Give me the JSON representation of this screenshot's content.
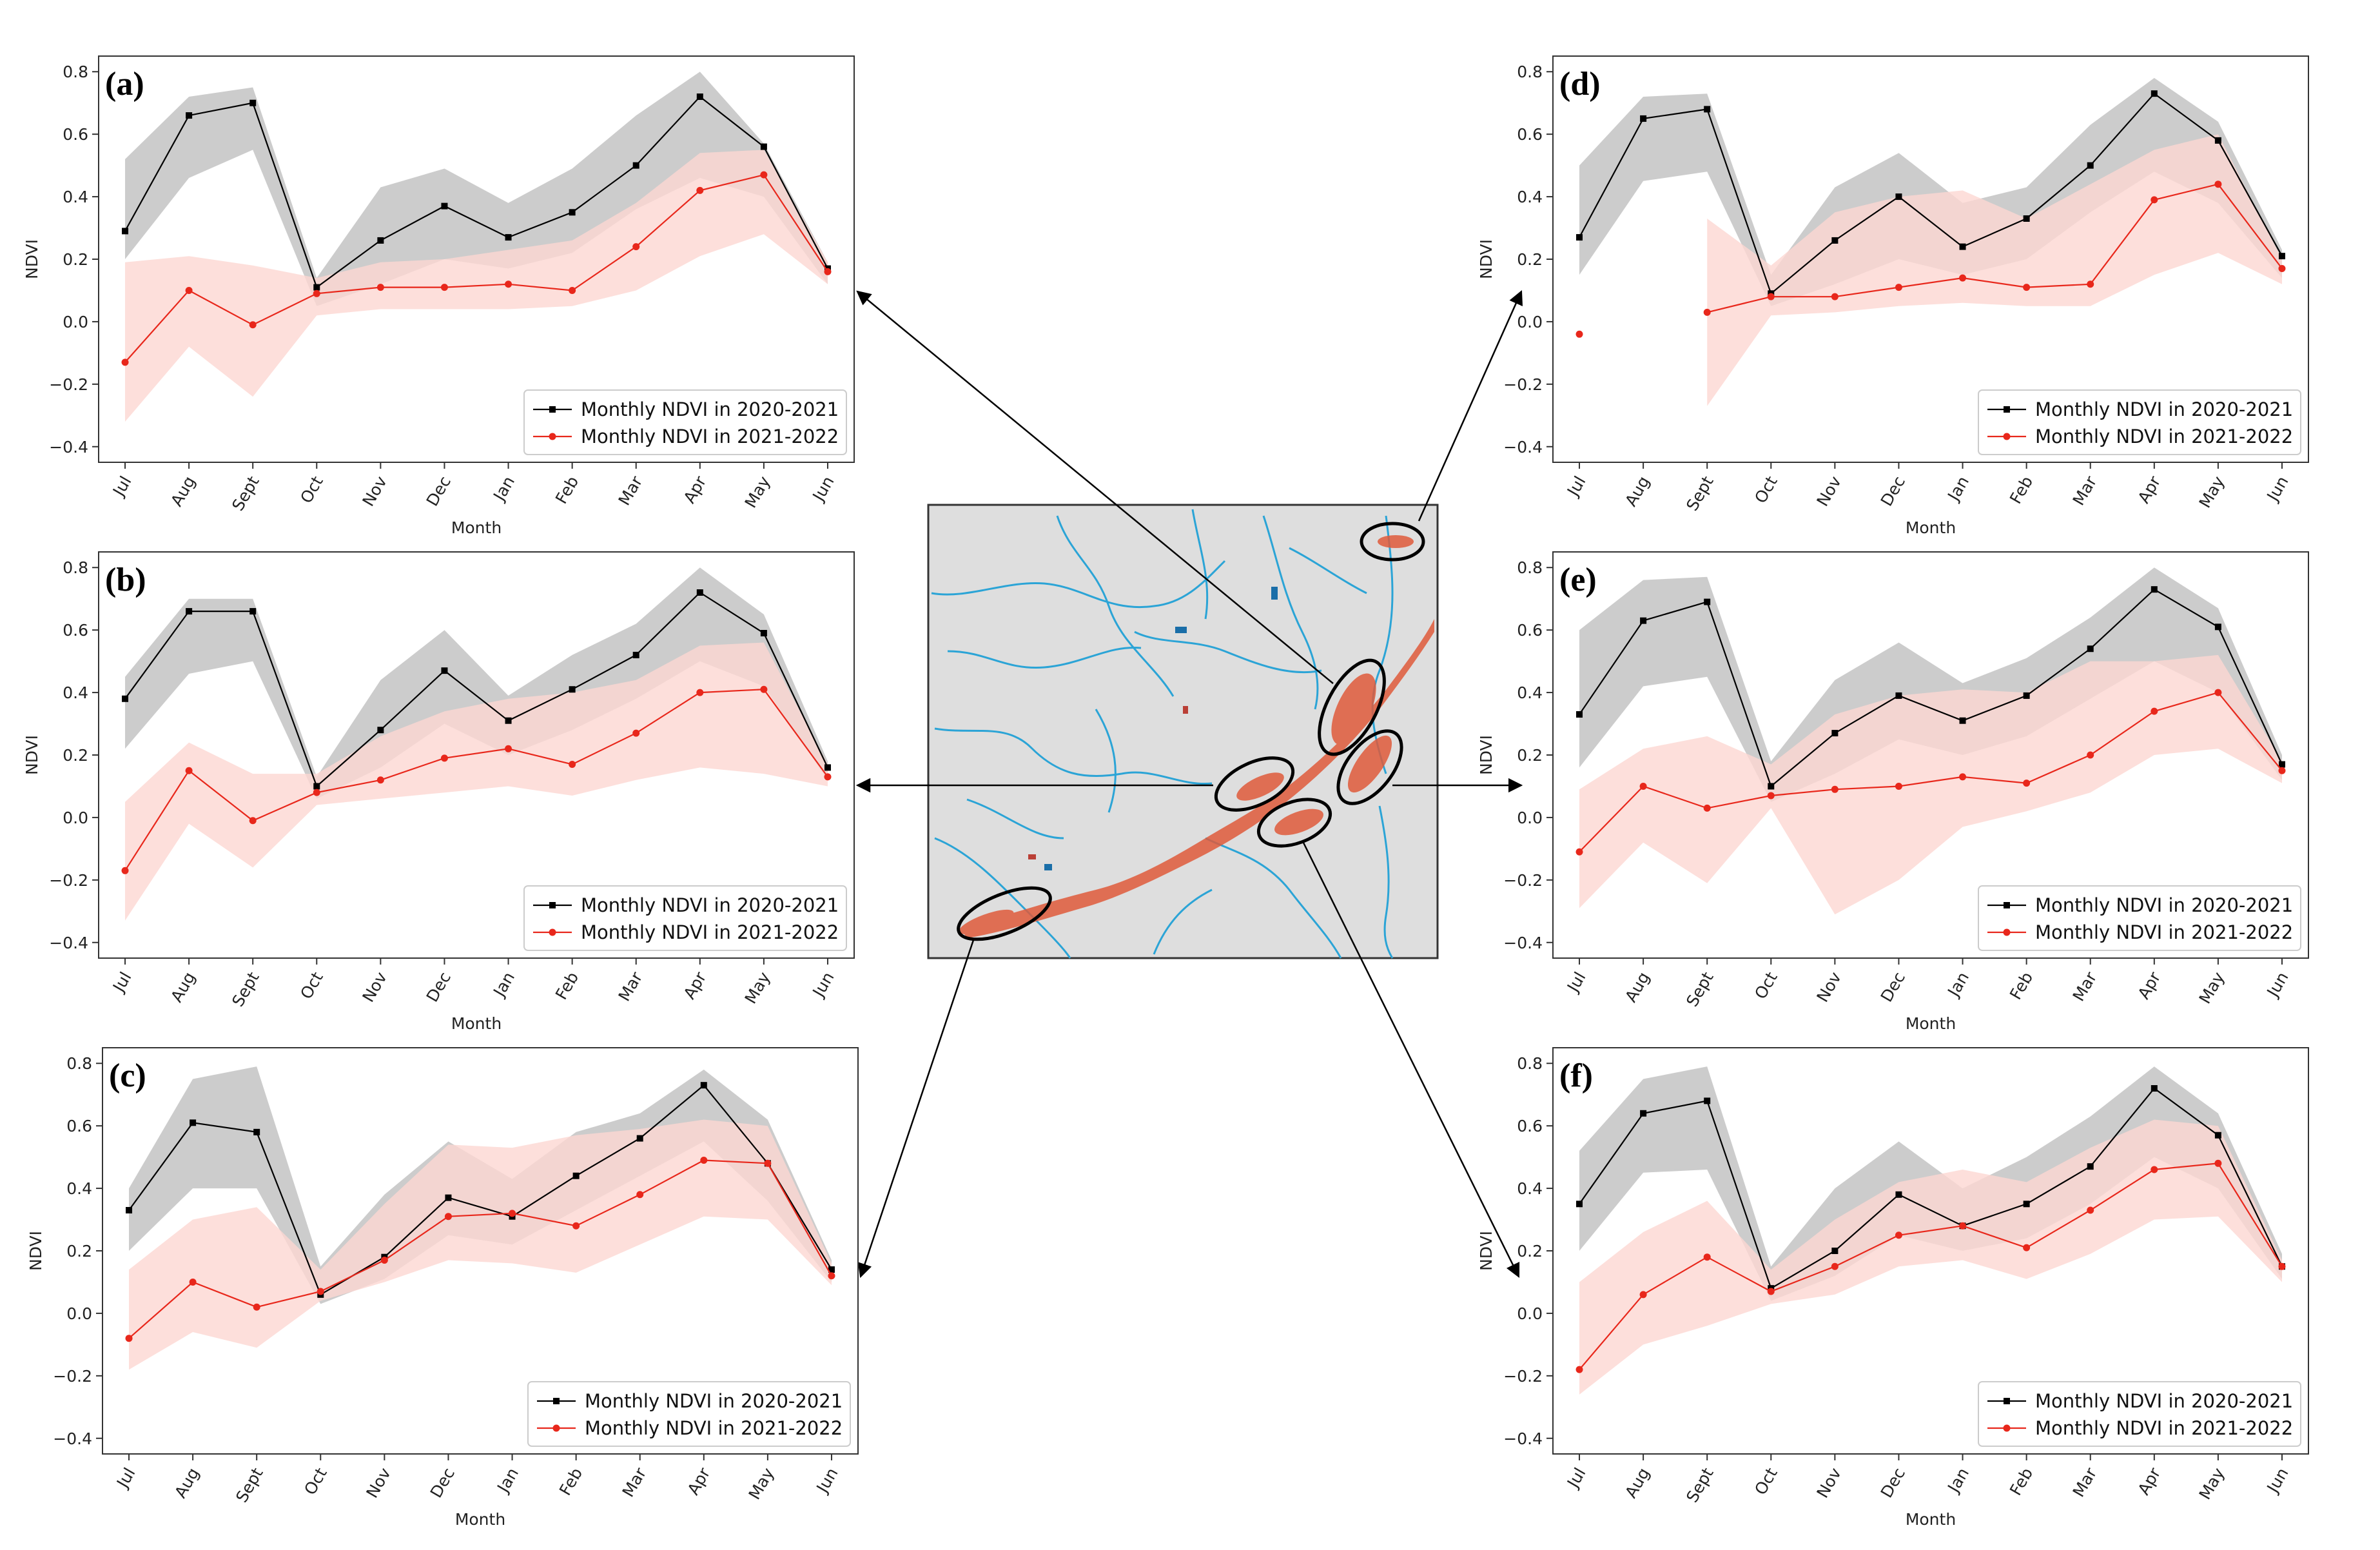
{
  "figure": {
    "colors": {
      "series_2020": "#000000",
      "series_2021": "#e8271b",
      "band_2020": "#c9c9c9",
      "band_2021": "#fcd7d2"
    },
    "map": {
      "description_icon": "study-area-map",
      "highlight_count": 6
    }
  },
  "chart_data": [
    {
      "type": "line",
      "panel_label": "(a)",
      "categories": [
        "Jul",
        "Aug",
        "Sept",
        "Oct",
        "Nov",
        "Dec",
        "Jan",
        "Feb",
        "Mar",
        "Apr",
        "May",
        "Jun"
      ],
      "xlabel": "Month",
      "ylabel": "NDVI",
      "ylim": [
        -0.45,
        0.85
      ],
      "yticks": [
        -0.4,
        -0.2,
        0.0,
        0.2,
        0.4,
        0.6,
        0.8
      ],
      "ytick_labels": [
        "−0.4",
        "−0.2",
        "0.0",
        "0.2",
        "0.4",
        "0.6",
        "0.8"
      ],
      "legend_position": "lower-right",
      "series": [
        {
          "name": "Monthly NDVI in 2020-2021",
          "color": "#000000",
          "values": [
            0.29,
            0.66,
            0.7,
            0.11,
            0.26,
            0.37,
            0.27,
            0.35,
            0.5,
            0.72,
            0.56,
            0.17
          ],
          "band_low": [
            0.2,
            0.46,
            0.55,
            0.05,
            0.12,
            0.2,
            0.17,
            0.22,
            0.36,
            0.46,
            0.4,
            0.12
          ],
          "band_high": [
            0.52,
            0.72,
            0.75,
            0.14,
            0.43,
            0.49,
            0.38,
            0.49,
            0.66,
            0.8,
            0.57,
            0.19
          ]
        },
        {
          "name": "Monthly NDVI in 2021-2022",
          "color": "#e8271b",
          "values": [
            -0.13,
            0.1,
            -0.01,
            0.09,
            0.11,
            0.11,
            0.12,
            0.1,
            0.24,
            0.42,
            0.47,
            0.16
          ],
          "band_low": [
            -0.32,
            -0.08,
            -0.24,
            0.02,
            0.04,
            0.04,
            0.04,
            0.05,
            0.1,
            0.21,
            0.28,
            0.12
          ],
          "band_high": [
            0.19,
            0.21,
            0.18,
            0.14,
            0.19,
            0.2,
            0.23,
            0.26,
            0.38,
            0.54,
            0.55,
            0.19
          ]
        }
      ]
    },
    {
      "type": "line",
      "panel_label": "(b)",
      "categories": [
        "Jul",
        "Aug",
        "Sept",
        "Oct",
        "Nov",
        "Dec",
        "Jan",
        "Feb",
        "Mar",
        "Apr",
        "May",
        "Jun"
      ],
      "xlabel": "Month",
      "ylabel": "NDVI",
      "ylim": [
        -0.45,
        0.85
      ],
      "yticks": [
        -0.4,
        -0.2,
        0.0,
        0.2,
        0.4,
        0.6,
        0.8
      ],
      "ytick_labels": [
        "−0.4",
        "−0.2",
        "0.0",
        "0.2",
        "0.4",
        "0.6",
        "0.8"
      ],
      "legend_position": "lower-right",
      "series": [
        {
          "name": "Monthly NDVI in 2020-2021",
          "color": "#000000",
          "values": [
            0.38,
            0.66,
            0.66,
            0.1,
            0.28,
            0.47,
            0.31,
            0.41,
            0.52,
            0.72,
            0.59,
            0.16
          ],
          "band_low": [
            0.22,
            0.46,
            0.5,
            0.06,
            0.16,
            0.3,
            0.2,
            0.28,
            0.38,
            0.5,
            0.42,
            0.12
          ],
          "band_high": [
            0.45,
            0.7,
            0.7,
            0.13,
            0.44,
            0.6,
            0.39,
            0.52,
            0.62,
            0.8,
            0.65,
            0.18
          ]
        },
        {
          "name": "Monthly NDVI in 2021-2022",
          "color": "#e8271b",
          "values": [
            -0.17,
            0.15,
            -0.01,
            0.08,
            0.12,
            0.19,
            0.22,
            0.17,
            0.27,
            0.4,
            0.41,
            0.13
          ],
          "band_low": [
            -0.33,
            -0.02,
            -0.16,
            0.04,
            0.06,
            0.08,
            0.1,
            0.07,
            0.12,
            0.16,
            0.14,
            0.1
          ],
          "band_high": [
            0.05,
            0.24,
            0.14,
            0.14,
            0.26,
            0.34,
            0.38,
            0.4,
            0.44,
            0.55,
            0.56,
            0.17
          ]
        }
      ]
    },
    {
      "type": "line",
      "panel_label": "(c)",
      "categories": [
        "Jul",
        "Aug",
        "Sept",
        "Oct",
        "Nov",
        "Dec",
        "Jan",
        "Feb",
        "Mar",
        "Apr",
        "May",
        "Jun"
      ],
      "xlabel": "Month",
      "ylabel": "NDVI",
      "ylim": [
        -0.45,
        0.85
      ],
      "yticks": [
        -0.4,
        -0.2,
        0.0,
        0.2,
        0.4,
        0.6,
        0.8
      ],
      "ytick_labels": [
        "−0.4",
        "−0.2",
        "0.0",
        "0.2",
        "0.4",
        "0.6",
        "0.8"
      ],
      "legend_position": "lower-right",
      "series": [
        {
          "name": "Monthly NDVI in 2020-2021",
          "color": "#000000",
          "values": [
            0.33,
            0.61,
            0.58,
            0.06,
            0.18,
            0.37,
            0.31,
            0.44,
            0.56,
            0.73,
            0.48,
            0.14
          ],
          "band_low": [
            0.2,
            0.4,
            0.4,
            0.03,
            0.11,
            0.25,
            0.22,
            0.33,
            0.44,
            0.55,
            0.36,
            0.1
          ],
          "band_high": [
            0.4,
            0.75,
            0.79,
            0.15,
            0.38,
            0.55,
            0.43,
            0.58,
            0.64,
            0.78,
            0.62,
            0.17
          ]
        },
        {
          "name": "Monthly NDVI in 2021-2022",
          "color": "#e8271b",
          "values": [
            -0.08,
            0.1,
            0.02,
            0.07,
            0.17,
            0.31,
            0.32,
            0.28,
            0.38,
            0.49,
            0.48,
            0.12
          ],
          "band_low": [
            -0.18,
            -0.06,
            -0.11,
            0.04,
            0.1,
            0.17,
            0.16,
            0.13,
            0.22,
            0.31,
            0.3,
            0.09
          ],
          "band_high": [
            0.14,
            0.3,
            0.34,
            0.14,
            0.35,
            0.54,
            0.53,
            0.57,
            0.59,
            0.62,
            0.6,
            0.16
          ]
        }
      ]
    },
    {
      "type": "line",
      "panel_label": "(d)",
      "categories": [
        "Jul",
        "Aug",
        "Sept",
        "Oct",
        "Nov",
        "Dec",
        "Jan",
        "Feb",
        "Mar",
        "Apr",
        "May",
        "Jun"
      ],
      "xlabel": "Month",
      "ylabel": "NDVI",
      "ylim": [
        -0.45,
        0.85
      ],
      "yticks": [
        -0.4,
        -0.2,
        0.0,
        0.2,
        0.4,
        0.6,
        0.8
      ],
      "ytick_labels": [
        "−0.4",
        "−0.2",
        "0.0",
        "0.2",
        "0.4",
        "0.6",
        "0.8"
      ],
      "legend_position": "lower-right",
      "series": [
        {
          "name": "Monthly NDVI in 2020-2021",
          "color": "#000000",
          "values": [
            0.27,
            0.65,
            0.68,
            0.09,
            0.26,
            0.4,
            0.24,
            0.33,
            0.5,
            0.73,
            0.58,
            0.21
          ],
          "band_low": [
            0.15,
            0.45,
            0.48,
            0.05,
            0.12,
            0.2,
            0.15,
            0.2,
            0.35,
            0.48,
            0.38,
            0.14
          ],
          "band_high": [
            0.5,
            0.72,
            0.73,
            0.15,
            0.43,
            0.54,
            0.38,
            0.43,
            0.63,
            0.78,
            0.64,
            0.23
          ]
        },
        {
          "name": "Monthly NDVI in 2021-2022",
          "color": "#e8271b",
          "values": [
            -0.04,
            null,
            0.03,
            0.08,
            0.08,
            0.11,
            0.14,
            0.11,
            0.12,
            0.39,
            0.44,
            0.17
          ],
          "band_low": [
            null,
            null,
            -0.27,
            0.02,
            0.03,
            0.05,
            0.06,
            0.05,
            0.05,
            0.15,
            0.22,
            0.12
          ],
          "band_high": [
            null,
            null,
            0.33,
            0.18,
            0.35,
            0.4,
            0.42,
            0.33,
            0.44,
            0.55,
            0.6,
            0.2
          ]
        }
      ]
    },
    {
      "type": "line",
      "panel_label": "(e)",
      "categories": [
        "Jul",
        "Aug",
        "Sept",
        "Oct",
        "Nov",
        "Dec",
        "Jan",
        "Feb",
        "Mar",
        "Apr",
        "May",
        "Jun"
      ],
      "xlabel": "Month",
      "ylabel": "NDVI",
      "ylim": [
        -0.45,
        0.85
      ],
      "yticks": [
        -0.4,
        -0.2,
        0.0,
        0.2,
        0.4,
        0.6,
        0.8
      ],
      "ytick_labels": [
        "−0.4",
        "−0.2",
        "0.0",
        "0.2",
        "0.4",
        "0.6",
        "0.8"
      ],
      "legend_position": "lower-right",
      "series": [
        {
          "name": "Monthly NDVI in 2020-2021",
          "color": "#000000",
          "values": [
            0.33,
            0.63,
            0.69,
            0.1,
            0.27,
            0.39,
            0.31,
            0.39,
            0.54,
            0.73,
            0.61,
            0.17
          ],
          "band_low": [
            0.16,
            0.42,
            0.45,
            0.05,
            0.14,
            0.25,
            0.2,
            0.26,
            0.38,
            0.5,
            0.4,
            0.12
          ],
          "band_high": [
            0.6,
            0.76,
            0.77,
            0.18,
            0.44,
            0.56,
            0.43,
            0.51,
            0.64,
            0.8,
            0.67,
            0.2
          ]
        },
        {
          "name": "Monthly NDVI in 2021-2022",
          "color": "#e8271b",
          "values": [
            -0.11,
            0.1,
            0.03,
            0.07,
            0.09,
            0.1,
            0.13,
            0.11,
            0.2,
            0.34,
            0.4,
            0.15
          ],
          "band_low": [
            -0.29,
            -0.08,
            -0.21,
            0.03,
            -0.31,
            -0.2,
            -0.03,
            0.02,
            0.08,
            0.2,
            0.22,
            0.11
          ],
          "band_high": [
            0.09,
            0.22,
            0.26,
            0.17,
            0.33,
            0.39,
            0.41,
            0.4,
            0.5,
            0.5,
            0.52,
            0.18
          ]
        }
      ]
    },
    {
      "type": "line",
      "panel_label": "(f)",
      "categories": [
        "Jul",
        "Aug",
        "Sept",
        "Oct",
        "Nov",
        "Dec",
        "Jan",
        "Feb",
        "Mar",
        "Apr",
        "May",
        "Jun"
      ],
      "xlabel": "Month",
      "ylabel": "NDVI",
      "ylim": [
        -0.45,
        0.85
      ],
      "yticks": [
        -0.4,
        -0.2,
        0.0,
        0.2,
        0.4,
        0.6,
        0.8
      ],
      "ytick_labels": [
        "−0.4",
        "−0.2",
        "0.0",
        "0.2",
        "0.4",
        "0.6",
        "0.8"
      ],
      "legend_position": "lower-right",
      "series": [
        {
          "name": "Monthly NDVI in 2020-2021",
          "color": "#000000",
          "values": [
            0.35,
            0.64,
            0.68,
            0.08,
            0.2,
            0.38,
            0.28,
            0.35,
            0.47,
            0.72,
            0.57,
            0.15
          ],
          "band_low": [
            0.2,
            0.45,
            0.46,
            0.04,
            0.12,
            0.25,
            0.2,
            0.24,
            0.35,
            0.5,
            0.4,
            0.11
          ],
          "band_high": [
            0.52,
            0.75,
            0.79,
            0.15,
            0.4,
            0.55,
            0.4,
            0.5,
            0.63,
            0.79,
            0.64,
            0.19
          ]
        },
        {
          "name": "Monthly NDVI in 2021-2022",
          "color": "#e8271b",
          "values": [
            -0.18,
            0.06,
            0.18,
            0.07,
            0.15,
            0.25,
            0.28,
            0.21,
            0.33,
            0.46,
            0.48,
            0.15
          ],
          "band_low": [
            -0.26,
            -0.1,
            -0.04,
            0.03,
            0.06,
            0.15,
            0.17,
            0.11,
            0.19,
            0.3,
            0.31,
            0.1
          ],
          "band_high": [
            0.1,
            0.26,
            0.36,
            0.14,
            0.3,
            0.42,
            0.46,
            0.42,
            0.53,
            0.62,
            0.6,
            0.17
          ]
        }
      ]
    }
  ]
}
